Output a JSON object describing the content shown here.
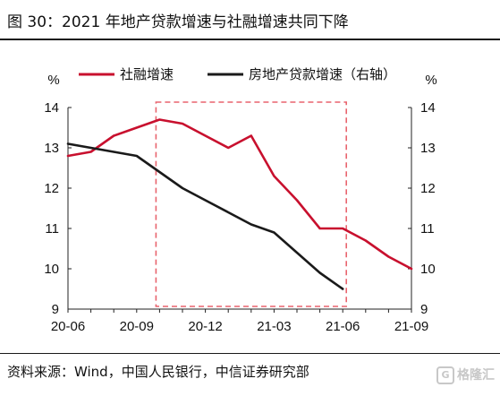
{
  "header": {
    "title": "图 30：2021 年地产贷款增速与社融增速共同下降"
  },
  "footer": {
    "source": "资料来源：Wind，中国人民银行，中信证券研究部",
    "watermark": "格隆汇",
    "watermark_icon": "G"
  },
  "chart_data": {
    "type": "line",
    "title": "图 30：2021 年地产贷款增速与社融增速共同下降",
    "ylabel_left": "%",
    "ylabel_right": "%",
    "ylim_left": [
      9,
      14
    ],
    "ylim_right": [
      9,
      14
    ],
    "yticks": [
      "9",
      "10",
      "11",
      "12",
      "13",
      "14"
    ],
    "x": [
      "20-06",
      "20-07",
      "20-08",
      "20-09",
      "20-10",
      "20-11",
      "20-12",
      "21-01",
      "21-02",
      "21-03",
      "21-04",
      "21-05",
      "21-06",
      "21-07",
      "21-08",
      "21-09"
    ],
    "xtick_labels": [
      "20-06",
      "20-09",
      "20-12",
      "21-03",
      "21-06",
      "21-09"
    ],
    "legend_position": "top",
    "grid": false,
    "highlight_box": {
      "x_from": "20-10",
      "x_to": "21-06",
      "style": "dashed",
      "color": "#e8646e"
    },
    "series": [
      {
        "name": "社融增速",
        "axis": "left",
        "color": "#c8102e",
        "values": [
          12.8,
          12.9,
          13.3,
          13.5,
          13.7,
          13.6,
          13.3,
          13.0,
          13.3,
          12.3,
          11.7,
          11.0,
          11.0,
          10.7,
          10.3,
          10.0
        ]
      },
      {
        "name": "房地产贷款增速（右轴）",
        "axis": "right",
        "color": "#1a1a1a",
        "values": [
          13.1,
          13.0,
          12.9,
          12.8,
          12.4,
          12.0,
          11.7,
          11.4,
          11.1,
          10.9,
          10.4,
          9.9,
          9.5,
          null,
          null,
          null
        ]
      }
    ]
  }
}
